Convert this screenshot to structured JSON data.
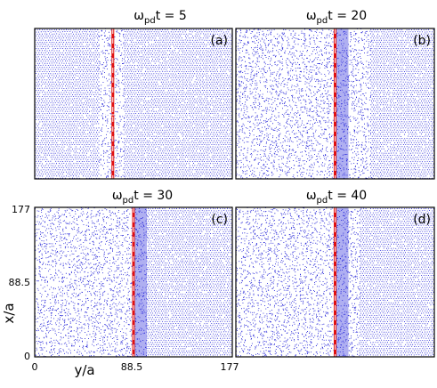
{
  "chart_data": [
    {
      "type": "scatter",
      "panel_label": "(a)",
      "title_symbol": "ω",
      "title_subscript": "pd",
      "title_rest": "t = 5",
      "time": 5,
      "xlim": [
        0,
        177
      ],
      "ylim": [
        0,
        177
      ],
      "interface_y": 70,
      "disorder_band": [
        58,
        79
      ],
      "series": [
        {
          "color": "#1a1ad6",
          "values": []
        },
        {
          "color": "#e01010",
          "values": []
        }
      ]
    },
    {
      "type": "scatter",
      "panel_label": "(b)",
      "title_symbol": "ω",
      "title_subscript": "pd",
      "title_rest": "t = 20",
      "time": 20,
      "xlim": [
        0,
        177
      ],
      "ylim": [
        0,
        177
      ],
      "interface_y": 88.5,
      "disorder_band": [
        0,
        120
      ],
      "series": [
        {
          "color": "#1a1ad6",
          "values": []
        },
        {
          "color": "#e01010",
          "values": []
        }
      ]
    },
    {
      "type": "scatter",
      "panel_label": "(c)",
      "title_symbol": "ω",
      "title_subscript": "pd",
      "title_rest": "t = 30",
      "time": 30,
      "xlim": [
        0,
        177
      ],
      "ylim": [
        0,
        177
      ],
      "interface_y": 88.5,
      "disorder_band": [
        0,
        100
      ],
      "series": [
        {
          "color": "#1a1ad6",
          "values": []
        },
        {
          "color": "#e01010",
          "values": []
        }
      ]
    },
    {
      "type": "scatter",
      "panel_label": "(d)",
      "title_symbol": "ω",
      "title_subscript": "pd",
      "title_rest": "t = 40",
      "time": 40,
      "xlim": [
        0,
        177
      ],
      "ylim": [
        0,
        177
      ],
      "interface_y": 88.5,
      "disorder_band": [
        0,
        110
      ],
      "series": [
        {
          "color": "#1a1ad6",
          "values": []
        },
        {
          "color": "#e01010",
          "values": []
        }
      ]
    }
  ],
  "axes": {
    "xlabel": "y/a",
    "ylabel": "x/a",
    "xticks": [
      "0",
      "88.5",
      "177"
    ],
    "yticks": [
      "0",
      "88.5",
      "177"
    ]
  },
  "colors": {
    "atoms": "#1a1ad6",
    "interface": "#e01010",
    "frame": "#000000",
    "gap_line": "#ffffff"
  }
}
